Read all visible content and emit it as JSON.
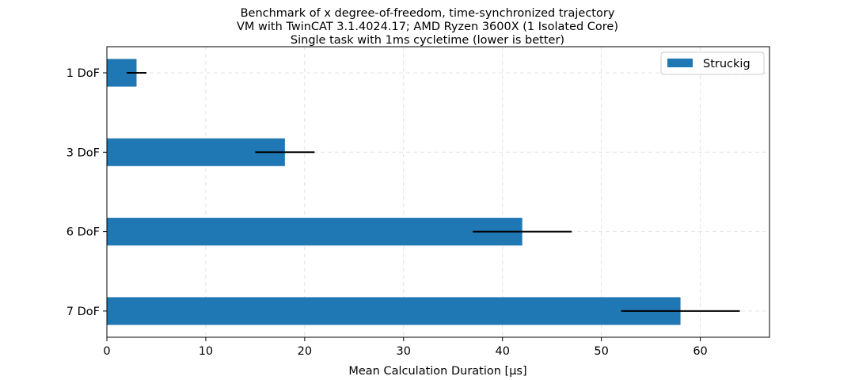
{
  "chart_data": {
    "type": "bar",
    "orientation": "horizontal",
    "title": [
      "Benchmark of x degree-of-freedom, time-synchronized trajectory",
      "VM with TwinCAT 3.1.4024.17; AMD Ryzen 3600X (1 Isolated Core)",
      "Single task with 1ms cycletime (lower is better)"
    ],
    "xlabel": "Mean Calculation Duration [µs]",
    "ylabel": "",
    "xlim": [
      0,
      67
    ],
    "xticks": [
      0,
      10,
      20,
      30,
      40,
      50,
      60
    ],
    "categories": [
      "1 DoF",
      "3 DoF",
      "6 DoF",
      "7 DoF"
    ],
    "series": [
      {
        "name": "Struckig",
        "color": "#1f77b4",
        "values": [
          3,
          18,
          42,
          58
        ],
        "error_low": [
          2,
          15,
          37,
          52
        ],
        "error_high": [
          4,
          21,
          47,
          64
        ]
      }
    ],
    "grid": true,
    "legend_position": "top-right"
  }
}
